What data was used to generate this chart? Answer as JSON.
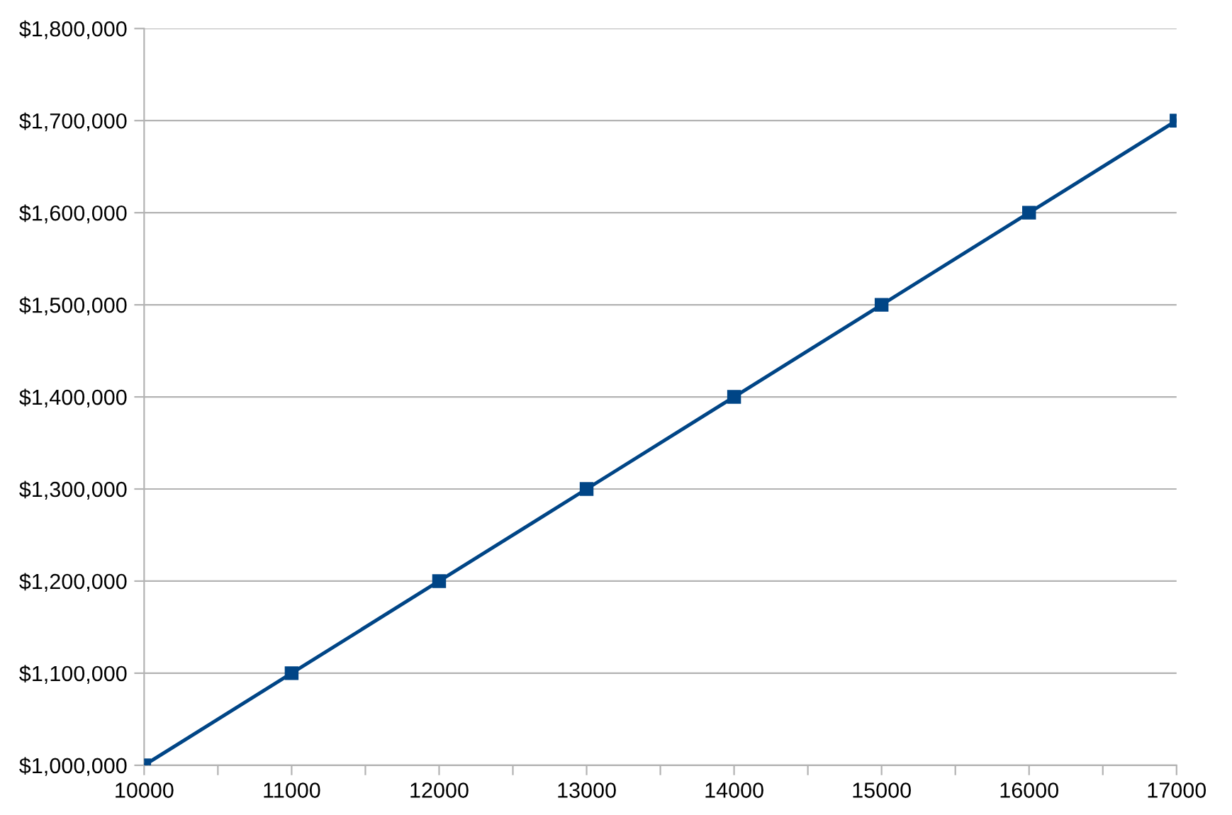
{
  "chart_data": {
    "type": "line",
    "x": [
      10000,
      11000,
      12000,
      13000,
      14000,
      15000,
      16000,
      17000
    ],
    "series": [
      {
        "color": "#004586",
        "values": [
          1000000,
          1100000,
          1200000,
          1300000,
          1400000,
          1500000,
          1600000,
          1700000
        ]
      }
    ],
    "xlim": [
      10000,
      17000
    ],
    "xticks": [
      10000,
      {
        "value": 10500,
        "label": null
      },
      11000,
      {
        "value": 11500,
        "label": null
      },
      12000,
      {
        "value": 12500,
        "label": null
      },
      13000,
      {
        "value": 13500,
        "label": null
      },
      14000,
      {
        "value": 14500,
        "label": null
      },
      15000,
      {
        "value": 15500,
        "label": null
      },
      16000,
      {
        "value": 16500,
        "label": null
      },
      17000
    ],
    "ylim": [
      1000000,
      1800000
    ],
    "yticks": [
      {
        "value": 1000000,
        "label": "$1,000,000"
      },
      {
        "value": 1100000,
        "label": "$1,100,000"
      },
      {
        "value": 1200000,
        "label": "$1,200,000"
      },
      {
        "value": 1300000,
        "label": "$1,300,000"
      },
      {
        "value": 1400000,
        "label": "$1,400,000"
      },
      {
        "value": 1500000,
        "label": "$1,500,000"
      },
      {
        "value": 1600000,
        "label": "$1,600,000"
      },
      {
        "value": 1700000,
        "label": "$1,700,000"
      },
      {
        "value": 1800000,
        "label": "$1,800,000"
      }
    ],
    "grid": "y",
    "marker": "square",
    "line_style": "solid"
  }
}
